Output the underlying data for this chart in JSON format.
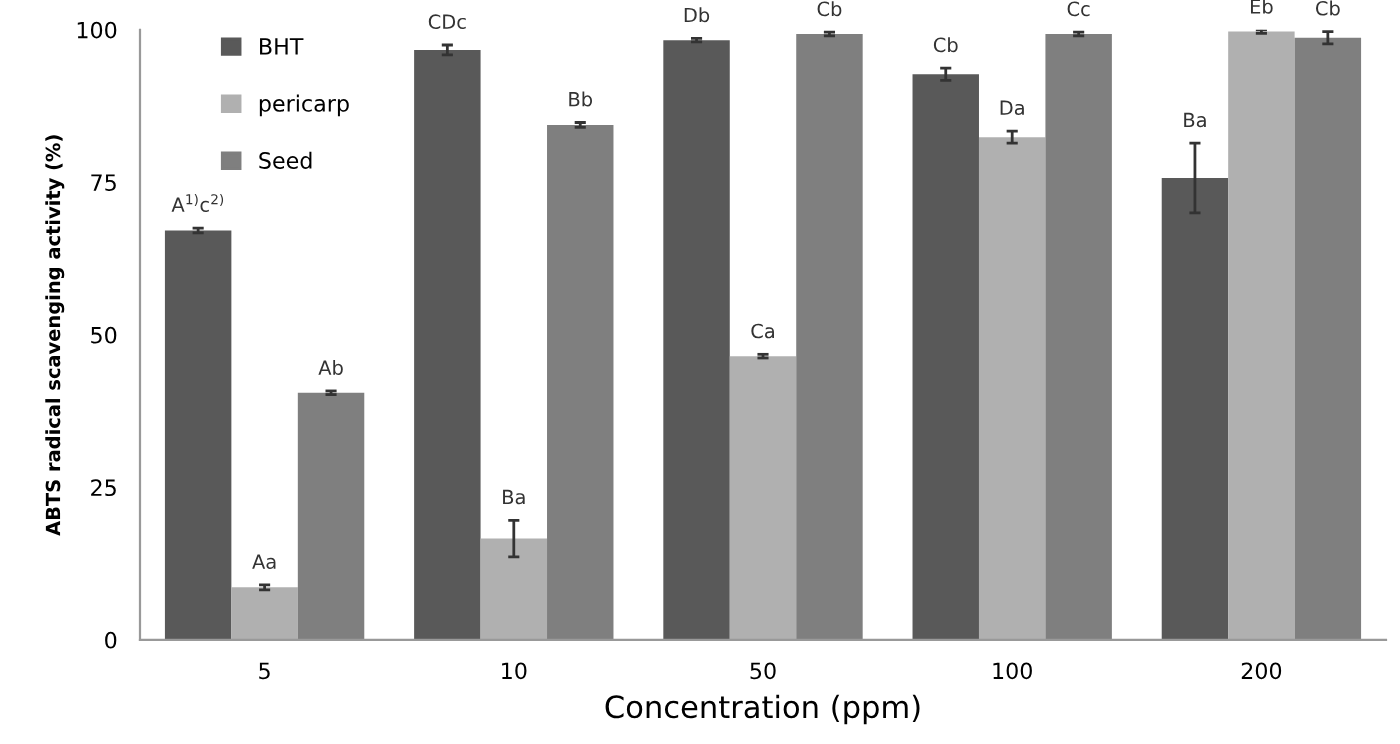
{
  "chart_data": {
    "type": "bar",
    "xlabel": "Concentration (ppm)",
    "ylabel": "ABTS radical scavenging activity (%)",
    "categories": [
      "5",
      "10",
      "50",
      "100",
      "200"
    ],
    "series": [
      {
        "name": "BHT",
        "color": "#595959",
        "values": [
          67.1,
          96.7,
          98.3,
          92.7,
          75.7
        ],
        "errors": [
          0.4,
          0.8,
          0.3,
          1.0,
          5.7
        ],
        "value_labels": [
          "A$^{1)}$c$^{2)}$",
          "CDc",
          "Db",
          "Cb",
          "Ba"
        ]
      },
      {
        "name": "pericarp",
        "color": "#b0b0b0",
        "values": [
          8.6,
          16.6,
          46.5,
          82.4,
          99.7
        ],
        "errors": [
          0.4,
          3.0,
          0.3,
          1.0,
          0.3
        ],
        "value_labels": [
          "Aa",
          "Ba",
          "Ca",
          "Da",
          "Eb"
        ]
      },
      {
        "name": "Seed",
        "color": "#7f7f7f",
        "values": [
          40.5,
          84.4,
          99.3,
          99.3,
          98.7
        ],
        "errors": [
          0.3,
          0.4,
          0.3,
          0.3,
          1.0
        ],
        "value_labels": [
          "Ab",
          "Bb",
          "Cb",
          "Cc",
          "Cb"
        ]
      }
    ],
    "ylim": [
      0,
      100
    ],
    "yticks": [
      0,
      25,
      50,
      75,
      100
    ],
    "grid": false,
    "legend": "top left"
  }
}
